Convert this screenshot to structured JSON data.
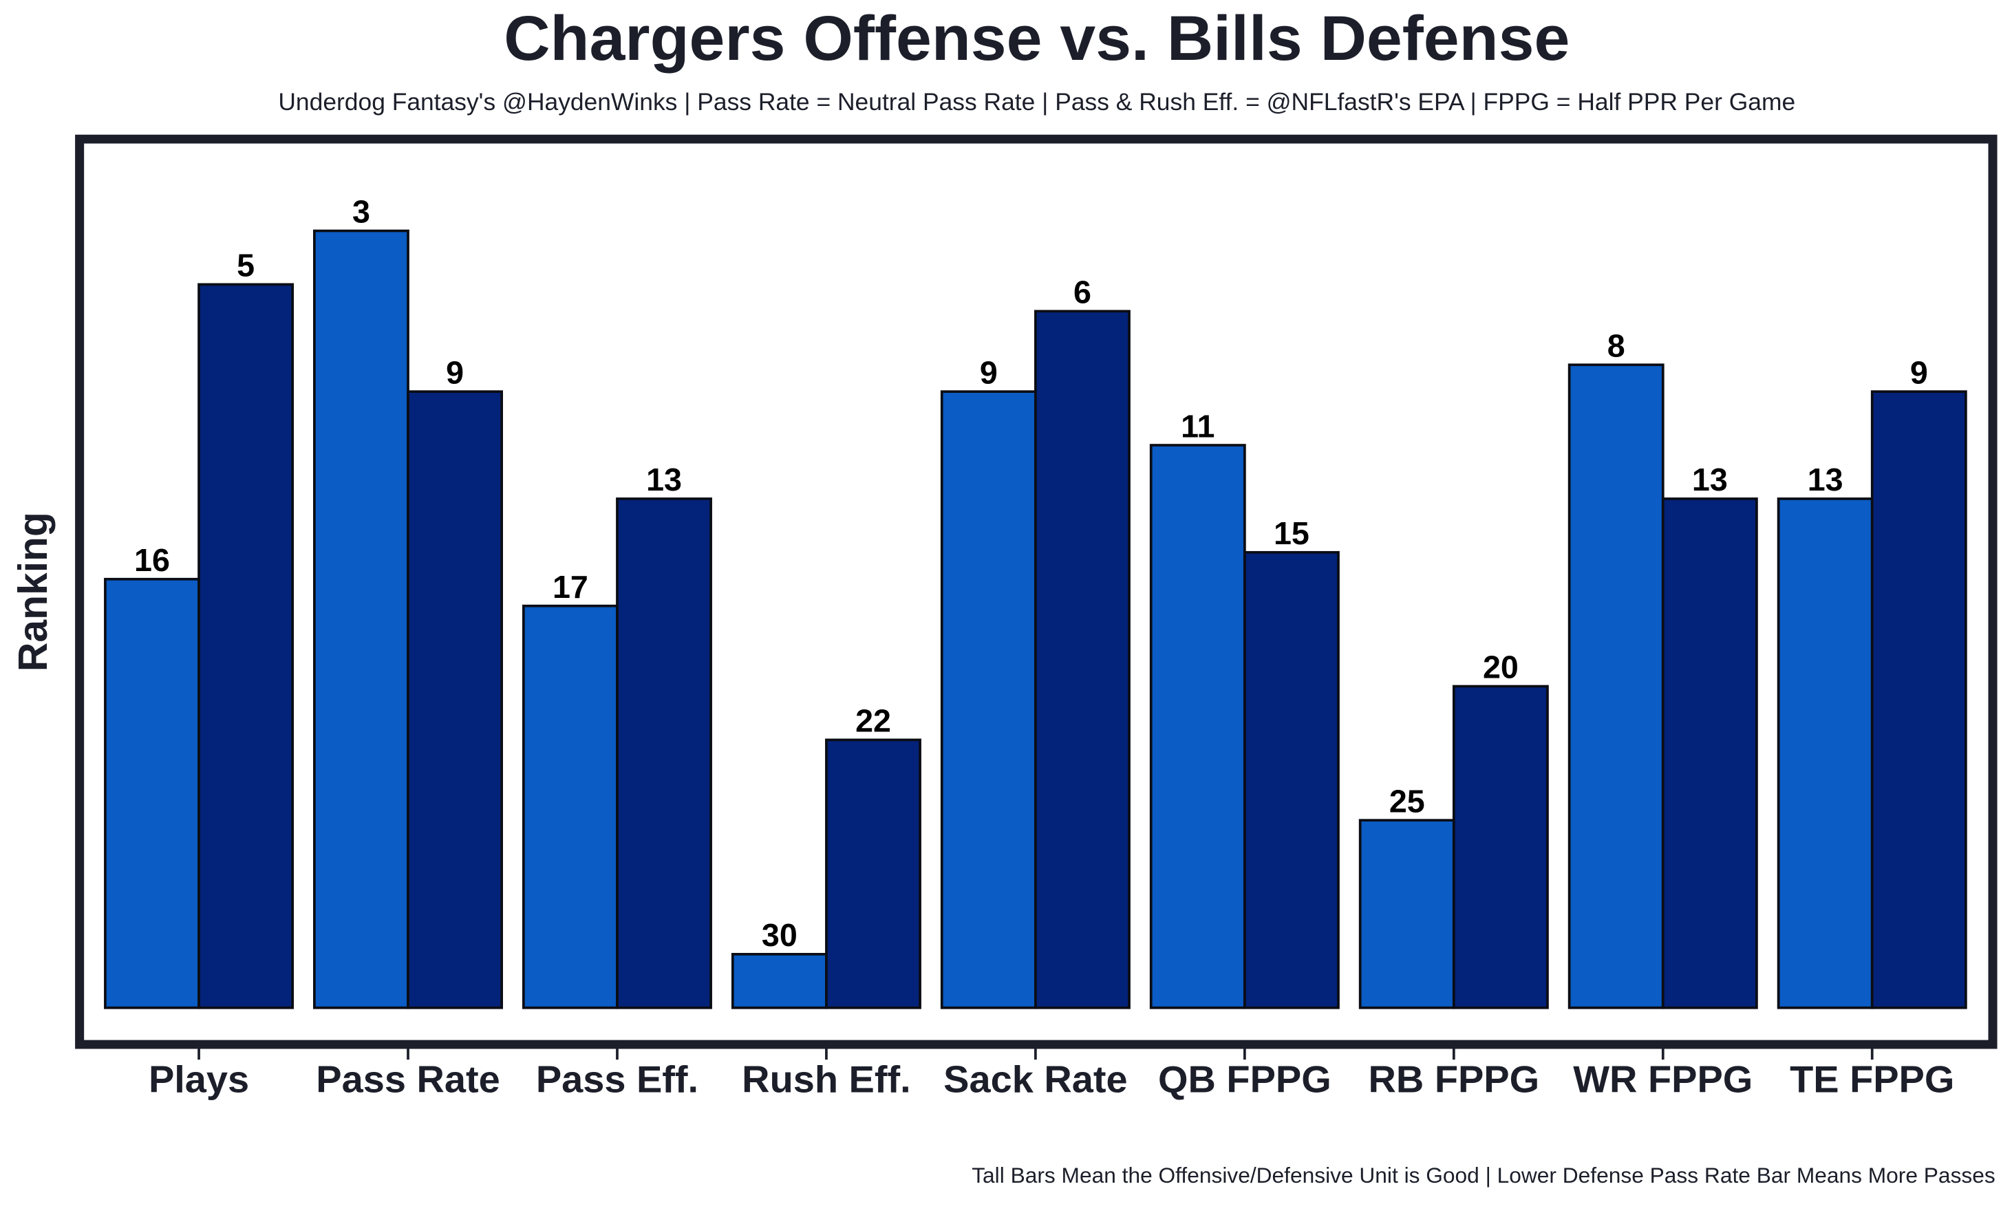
{
  "chart_data": {
    "type": "bar",
    "title": "Chargers Offense vs. Bills Defense",
    "subtitle": "Underdog Fantasy's @HaydenWinks | Pass Rate = Neutral Pass Rate | Pass & Rush Eff. = @NFLfastR's EPA | FPPG = Half PPR Per Game",
    "y_label": "Ranking",
    "caption": "Tall Bars Mean the Offensive/Defensive Unit is Good | Lower Defense Pass Rate Bar Means More Passes",
    "categories": [
      "Plays",
      "Pass Rate",
      "Pass Eff.",
      "Rush Eff.",
      "Sack Rate",
      "QB FPPG",
      "RB FPPG",
      "WR FPPG",
      "TE FPPG"
    ],
    "series": [
      {
        "color": "#0b5cc4",
        "values": [
          16,
          3,
          17,
          30,
          9,
          11,
          25,
          8,
          13
        ]
      },
      {
        "color": "#032279",
        "values": [
          5,
          9,
          13,
          22,
          6,
          15,
          20,
          13,
          9
        ]
      }
    ],
    "ylim": [
      32,
      0
    ]
  }
}
